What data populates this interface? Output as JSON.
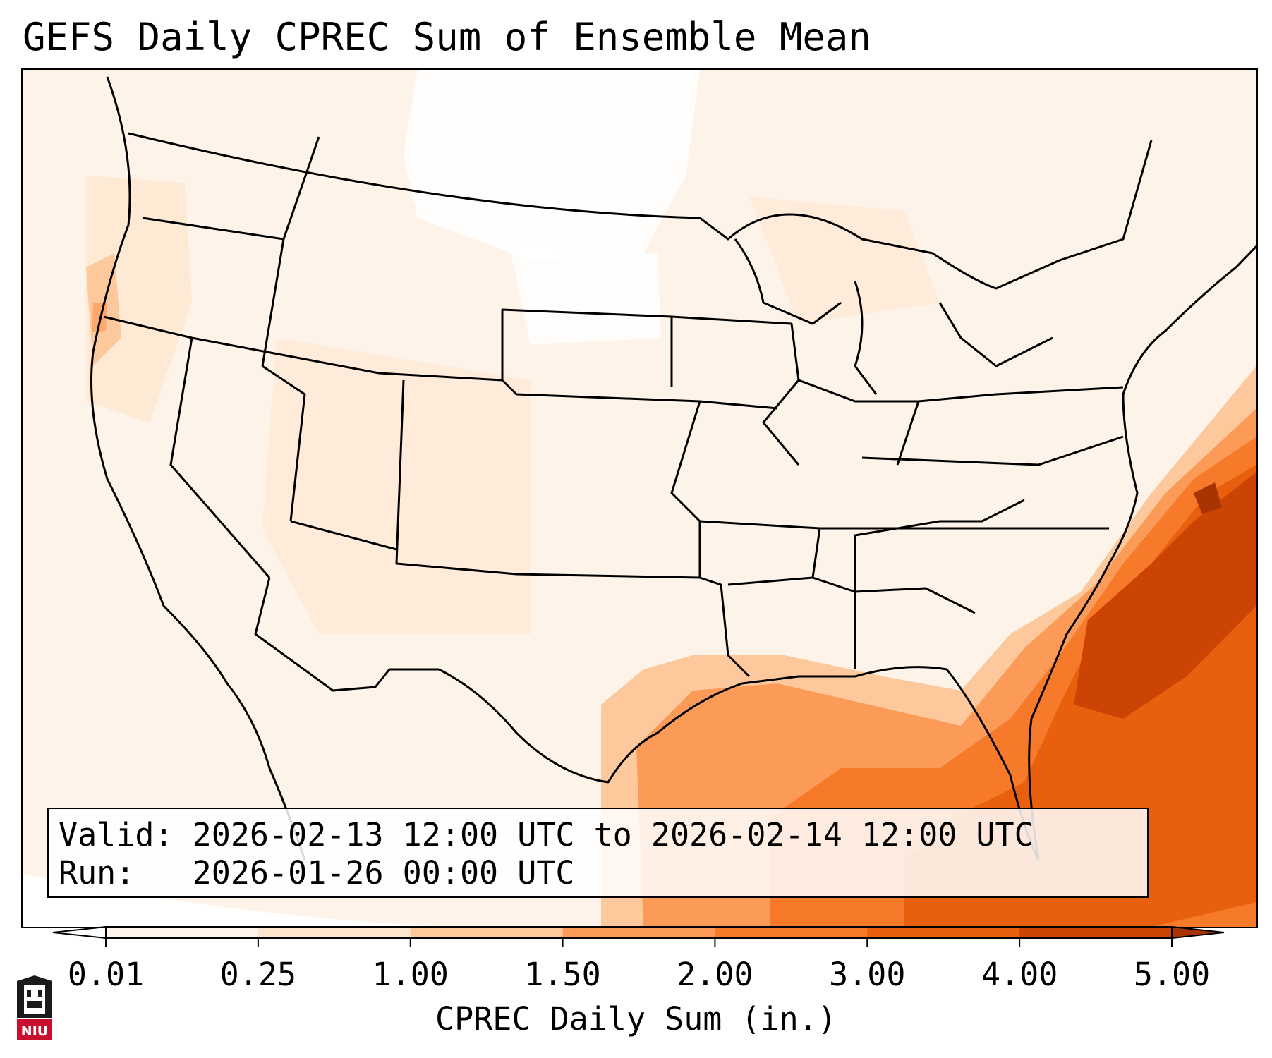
{
  "title": "GEFS Daily CPREC Sum of Ensemble Mean",
  "info": {
    "valid_line": "Valid: 2026-02-13 12:00 UTC to 2026-02-14 12:00 UTC",
    "run_line": "Run:   2026-01-26 00:00 UTC"
  },
  "colorbar": {
    "label": "CPREC Daily Sum (in.)",
    "ticks": [
      "0.01",
      "0.25",
      "1.00",
      "1.50",
      "2.00",
      "3.00",
      "4.00",
      "5.00"
    ],
    "colors": [
      "#fef3e8",
      "#fde4cc",
      "#fdc89b",
      "#fc9b57",
      "#f67a2a",
      "#e8600e",
      "#cc4403"
    ],
    "under_color": "#ffffff",
    "over_color": "#a83303"
  },
  "logo": {
    "text": "NIU",
    "color": "#c8102e"
  }
}
